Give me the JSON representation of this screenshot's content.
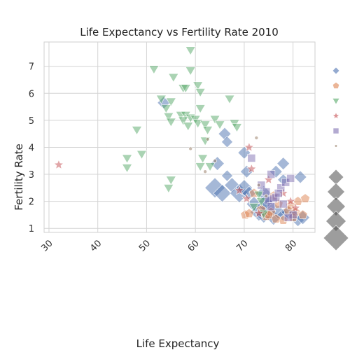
{
  "chart_data": {
    "type": "scatter",
    "title": "Life Expectancy vs Fertility Rate 2010",
    "xlabel": "Life Expectancy",
    "ylabel": "Fertility Rate",
    "xlim": [
      29,
      84.5
    ],
    "ylim": [
      0.85,
      7.9
    ],
    "xticks": [
      30,
      40,
      50,
      60,
      70,
      80
    ],
    "yticks": [
      1,
      2,
      3,
      4,
      5,
      6,
      7
    ],
    "grid": true,
    "legend": "right",
    "series": [
      {
        "marker": "diamond",
        "color": "#4c72b0",
        "points": [
          [
            53.5,
            5.65
          ],
          [
            64.5,
            3.4
          ],
          [
            66.0,
            4.5
          ],
          [
            66.5,
            4.2
          ],
          [
            70.0,
            3.8
          ],
          [
            78.0,
            3.4
          ],
          [
            66.5,
            2.95
          ],
          [
            70.5,
            3.1
          ],
          [
            74.0,
            2.3
          ],
          [
            76.5,
            3.1
          ],
          [
            78.0,
            2.8
          ],
          [
            81.5,
            2.9
          ],
          [
            64.0,
            2.5
          ],
          [
            65.5,
            2.3
          ],
          [
            67.5,
            2.6
          ],
          [
            69.0,
            2.3
          ],
          [
            70.0,
            2.5
          ],
          [
            71.0,
            2.3
          ],
          [
            72.0,
            1.9
          ],
          [
            73.0,
            1.6
          ],
          [
            74.0,
            1.5
          ],
          [
            75.0,
            1.8
          ],
          [
            76.0,
            1.4
          ],
          [
            77.0,
            1.6
          ],
          [
            78.0,
            1.5
          ],
          [
            79.0,
            1.6
          ],
          [
            80.0,
            1.5
          ],
          [
            81.0,
            1.3
          ],
          [
            82.0,
            1.4
          ],
          [
            74.5,
            2.0
          ]
        ],
        "sizes": [
          1.0,
          1.1,
          1.0,
          0.9,
          1.0,
          1.0,
          0.9,
          1.0,
          1.2,
          1.0,
          0.9,
          1.0,
          1.6,
          1.4,
          1.2,
          1.5,
          1.3,
          1.1,
          1.2,
          1.4,
          1.3,
          1.5,
          1.2,
          1.1,
          1.0,
          1.1,
          1.0,
          1.0,
          1.1,
          1.2
        ]
      },
      {
        "marker": "pentagon",
        "color": "#dd8452",
        "points": [
          [
            70.2,
            1.5
          ],
          [
            71.0,
            1.55
          ],
          [
            72.0,
            2.3
          ],
          [
            73.5,
            1.7
          ],
          [
            74.5,
            1.45
          ],
          [
            75.5,
            1.6
          ],
          [
            76.0,
            2.2
          ],
          [
            77.0,
            1.9
          ],
          [
            78.0,
            1.3
          ],
          [
            79.0,
            1.65
          ],
          [
            79.5,
            1.85
          ],
          [
            80.0,
            1.4
          ],
          [
            80.5,
            1.6
          ],
          [
            81.0,
            2.0
          ],
          [
            82.0,
            1.5
          ],
          [
            82.5,
            2.1
          ],
          [
            76.5,
            1.35
          ],
          [
            75.0,
            1.5
          ]
        ]
      },
      {
        "marker": "triangle-down",
        "color": "#55a868",
        "points": [
          [
            59.0,
            7.6
          ],
          [
            51.5,
            6.9
          ],
          [
            59.0,
            6.85
          ],
          [
            55.5,
            6.6
          ],
          [
            60.5,
            6.3
          ],
          [
            57.5,
            6.2
          ],
          [
            61.0,
            6.05
          ],
          [
            58.0,
            6.2
          ],
          [
            53.0,
            5.8
          ],
          [
            55.0,
            5.7
          ],
          [
            67.0,
            5.8
          ],
          [
            54.0,
            5.45
          ],
          [
            61.0,
            5.45
          ],
          [
            57.0,
            5.2
          ],
          [
            58.0,
            5.2
          ],
          [
            59.0,
            5.1
          ],
          [
            60.0,
            5.05
          ],
          [
            64.0,
            5.05
          ],
          [
            54.5,
            5.15
          ],
          [
            57.5,
            5.0
          ],
          [
            55.0,
            4.95
          ],
          [
            60.5,
            4.9
          ],
          [
            62.0,
            4.85
          ],
          [
            65.0,
            4.85
          ],
          [
            68.0,
            4.9
          ],
          [
            68.5,
            4.75
          ],
          [
            58.5,
            4.8
          ],
          [
            62.5,
            4.65
          ],
          [
            48.0,
            4.65
          ],
          [
            62.0,
            4.25
          ],
          [
            49.0,
            3.75
          ],
          [
            46.0,
            3.6
          ],
          [
            61.5,
            3.6
          ],
          [
            63.0,
            3.3
          ],
          [
            61.0,
            3.3
          ],
          [
            46.0,
            3.25
          ],
          [
            55.0,
            2.8
          ],
          [
            54.5,
            2.5
          ],
          [
            73.0,
            2.25
          ],
          [
            73.5,
            2.0
          ],
          [
            72.0,
            1.8
          ],
          [
            74.0,
            1.55
          ]
        ]
      },
      {
        "marker": "star",
        "color": "#c44e52",
        "points": [
          [
            32.0,
            3.35
          ],
          [
            71.0,
            4.0
          ],
          [
            71.5,
            3.2
          ],
          [
            69.0,
            2.4
          ],
          [
            70.5,
            2.1
          ],
          [
            73.0,
            1.55
          ],
          [
            75.0,
            2.8
          ],
          [
            78.0,
            2.3
          ],
          [
            79.5,
            2.0
          ],
          [
            80.5,
            1.75
          ]
        ]
      },
      {
        "marker": "square",
        "color": "#8172b3",
        "points": [
          [
            71.5,
            3.6
          ],
          [
            75.5,
            3.0
          ],
          [
            73.5,
            2.6
          ],
          [
            74.5,
            2.35
          ],
          [
            75.0,
            2.05
          ],
          [
            76.0,
            2.1
          ],
          [
            76.5,
            2.15
          ],
          [
            77.5,
            2.5
          ],
          [
            78.5,
            2.7
          ],
          [
            79.5,
            2.85
          ],
          [
            75.5,
            1.8
          ],
          [
            78.0,
            1.9
          ],
          [
            80.0,
            1.5
          ],
          [
            79.0,
            1.4
          ],
          [
            77.0,
            2.3
          ]
        ]
      },
      {
        "marker": "dot",
        "color": "#937860",
        "points": [
          [
            59.0,
            3.95
          ],
          [
            62.5,
            4.3
          ],
          [
            64.0,
            3.5
          ],
          [
            62.0,
            3.1
          ],
          [
            72.5,
            4.35
          ],
          [
            73.0,
            2.6
          ],
          [
            74.5,
            2.2
          ]
        ]
      }
    ],
    "legend_entries": [
      {
        "marker": "diamond",
        "color": "#4c72b0",
        "label": ""
      },
      {
        "marker": "pentagon",
        "color": "#dd8452",
        "label": ""
      },
      {
        "marker": "triangle-down",
        "color": "#55a868",
        "label": ""
      },
      {
        "marker": "star",
        "color": "#c44e52",
        "label": ""
      },
      {
        "marker": "square",
        "color": "#8172b3",
        "label": ""
      },
      {
        "marker": "dot",
        "color": "#937860",
        "label": ""
      }
    ],
    "size_legend": [
      "size-1",
      "size-2",
      "size-3",
      "size-4",
      "size-5"
    ]
  }
}
